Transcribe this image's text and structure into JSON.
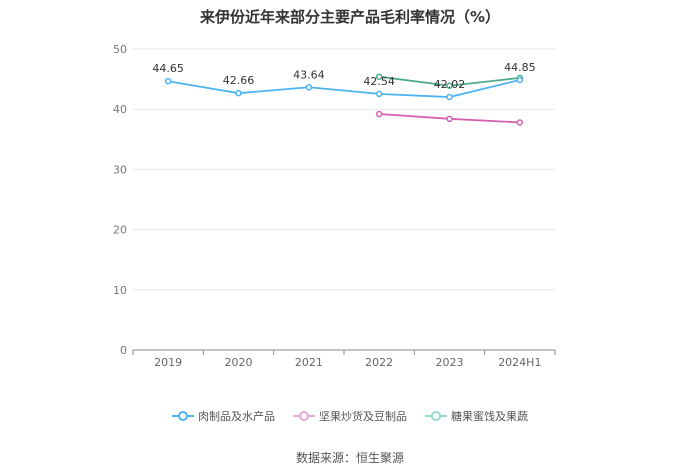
{
  "title": "来伊份近年来部分主要产品毛利率情况（%）",
  "source": "数据来源：恒生聚源",
  "chart_data": {
    "type": "line",
    "title": "来伊份近年来部分主要产品毛利率情况（%）",
    "x": [
      "2019",
      "2020",
      "2021",
      "2022",
      "2023",
      "2024H1"
    ],
    "ylim": [
      0,
      50
    ],
    "yticks": [
      0,
      10,
      20,
      30,
      40,
      50
    ],
    "grid": true,
    "legend_position": "bottom",
    "series": [
      {
        "name": "肉制品及水产品",
        "color": "#4db3f2",
        "values": [
          44.65,
          42.66,
          43.64,
          42.54,
          42.02,
          44.85
        ],
        "labels": [
          "44.65",
          "42.66",
          "43.64",
          "42.54",
          "42.02",
          "44.85"
        ]
      },
      {
        "name": "坚果炒货及豆制品",
        "color": "#d660b0",
        "values": [
          null,
          null,
          null,
          39.2,
          38.4,
          37.8
        ]
      },
      {
        "name": "糖果蜜饯及果蔬",
        "color": "#4cab8c",
        "values": [
          null,
          null,
          null,
          45.4,
          43.9,
          45.2
        ]
      }
    ]
  }
}
